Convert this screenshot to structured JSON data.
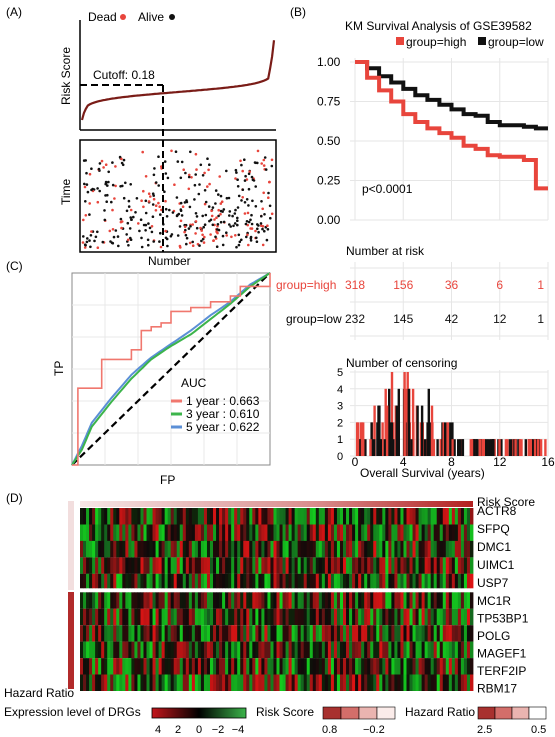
{
  "panels": {
    "a": "(A)",
    "b": "(B)",
    "c": "(C)",
    "d": "(D)"
  },
  "panel_a": {
    "legend_dead": "Dead",
    "legend_alive": "Alive",
    "ylabel_top": "Risk Score",
    "cutoff_label": "Cutoff: 0.18",
    "ylabel_bottom": "Time",
    "xlabel": "Number",
    "colors": {
      "dead": "#e8453c",
      "alive": "#111111"
    }
  },
  "panel_b": {
    "title": "KM Survival Analysis of GSE39582",
    "legend_high": "group=high",
    "legend_low": "group=low",
    "pvalue": "p<0.0001",
    "yticks": [
      "1.00",
      "0.75",
      "0.50",
      "0.25",
      "0.00"
    ],
    "risk_title": "Number at risk",
    "risk_rows": [
      {
        "label": "group=high",
        "values": [
          "318",
          "156",
          "36",
          "6",
          "1"
        ]
      },
      {
        "label": "group=low",
        "values": [
          "232",
          "145",
          "42",
          "12",
          "1"
        ]
      }
    ],
    "censor_title": "Number of censoring",
    "censor_yticks": [
      "5",
      "4",
      "3",
      "2",
      "1",
      "0"
    ],
    "xticks": [
      "0",
      "4",
      "8",
      "12",
      "16"
    ],
    "xlabel": "Overall Survival (years)",
    "colors": {
      "high": "#e8453c",
      "low": "#111111"
    }
  },
  "panel_c": {
    "ylabel": "TP",
    "xlabel": "FP",
    "auc_title": "AUC",
    "auc_items": [
      {
        "label": "1 year : 0.663",
        "color": "#f0776e"
      },
      {
        "label": "3 year : 0.610",
        "color": "#3cb44b"
      },
      {
        "label": "5 year : 0.622",
        "color": "#5b8fd6"
      }
    ]
  },
  "panel_d": {
    "row_labels_top": [
      "Risk Score",
      "ACTR8",
      "SFPQ",
      "DMC1",
      "UIMC1",
      "USP7"
    ],
    "row_labels_bottom": [
      "MC1R",
      "TP53BP1",
      "POLG",
      "MAGEF1",
      "TERF2IP",
      "RBM17"
    ],
    "hazard_label": "Hazard Ratio",
    "legend_expr_title": "Expression level of DRGs",
    "legend_expr_ticks": [
      "4",
      "2",
      "0",
      "−2",
      "−4"
    ],
    "legend_risk_title": "Risk Score",
    "legend_risk_ticks": [
      "0.8",
      "−0.2"
    ],
    "legend_hr_title": "Hazard Ratio",
    "legend_hr_ticks": [
      "2.5",
      "0.5"
    ]
  },
  "chart_data": [
    {
      "type": "scatter",
      "title": "",
      "xlabel": "Number",
      "ylabel": "Risk Score",
      "annotation": "Cutoff: 0.18",
      "series": [
        {
          "name": "Dead"
        },
        {
          "name": "Alive"
        }
      ]
    },
    {
      "type": "line",
      "title": "KM Survival Analysis of GSE39582",
      "xlabel": "Overall Survival (years)",
      "ylim": [
        0,
        1
      ],
      "xlim": [
        0,
        16
      ],
      "series": [
        {
          "name": "group=high",
          "x": [
            0,
            1,
            2,
            3,
            4,
            5,
            6,
            7,
            8,
            9,
            10,
            11,
            12,
            13,
            14,
            15,
            16
          ],
          "values": [
            1.0,
            0.9,
            0.82,
            0.75,
            0.67,
            0.62,
            0.58,
            0.55,
            0.52,
            0.47,
            0.45,
            0.41,
            0.4,
            0.4,
            0.38,
            0.2,
            0.2
          ]
        },
        {
          "name": "group=low",
          "x": [
            0,
            1,
            2,
            3,
            4,
            5,
            6,
            7,
            8,
            9,
            10,
            11,
            12,
            13,
            14,
            15,
            16
          ],
          "values": [
            1.0,
            0.96,
            0.91,
            0.87,
            0.83,
            0.79,
            0.76,
            0.73,
            0.7,
            0.67,
            0.66,
            0.62,
            0.6,
            0.6,
            0.59,
            0.58,
            0.58
          ]
        }
      ],
      "annotation": "p<0.0001"
    },
    {
      "type": "table",
      "title": "Number at risk",
      "columns": [
        "0",
        "4",
        "8",
        "12",
        "16"
      ],
      "rows": [
        {
          "name": "group=high",
          "values": [
            318,
            156,
            36,
            6,
            1
          ]
        },
        {
          "name": "group=low",
          "values": [
            232,
            145,
            42,
            12,
            1
          ]
        }
      ]
    },
    {
      "type": "bar",
      "title": "Number of censoring",
      "xlabel": "Overall Survival (years)",
      "ylim": [
        0,
        5
      ],
      "xlim": [
        0,
        16
      ]
    },
    {
      "type": "line",
      "title": "",
      "xlabel": "FP",
      "ylabel": "TP",
      "xlim": [
        0,
        1
      ],
      "ylim": [
        0,
        1
      ],
      "series": [
        {
          "name": "1 year : 0.663",
          "x": [
            0,
            0.03,
            0.03,
            0.15,
            0.15,
            0.3,
            0.35,
            0.4,
            0.45,
            0.5,
            0.6,
            0.7,
            0.8,
            0.85,
            1.0
          ],
          "values": [
            0,
            0.2,
            0.4,
            0.42,
            0.55,
            0.6,
            0.7,
            0.72,
            0.74,
            0.8,
            0.82,
            0.85,
            0.88,
            0.93,
            1.0
          ]
        },
        {
          "name": "3 year : 0.610",
          "x": [
            0,
            0.05,
            0.1,
            0.2,
            0.3,
            0.4,
            0.5,
            0.6,
            0.7,
            0.8,
            0.9,
            1.0
          ],
          "values": [
            0,
            0.08,
            0.2,
            0.33,
            0.45,
            0.55,
            0.62,
            0.68,
            0.76,
            0.84,
            0.93,
            1.0
          ]
        },
        {
          "name": "5 year : 0.622",
          "x": [
            0,
            0.05,
            0.1,
            0.2,
            0.3,
            0.4,
            0.5,
            0.6,
            0.7,
            0.8,
            0.9,
            1.0
          ],
          "values": [
            0,
            0.1,
            0.22,
            0.35,
            0.47,
            0.56,
            0.63,
            0.7,
            0.78,
            0.85,
            0.94,
            1.0
          ]
        }
      ]
    },
    {
      "type": "heatmap",
      "title": "",
      "rows": [
        "Risk Score",
        "ACTR8",
        "SFPQ",
        "DMC1",
        "UIMC1",
        "USP7",
        "MC1R",
        "TP53BP1",
        "POLG",
        "MAGEF1",
        "TERF2IP",
        "RBM17"
      ]
    }
  ]
}
